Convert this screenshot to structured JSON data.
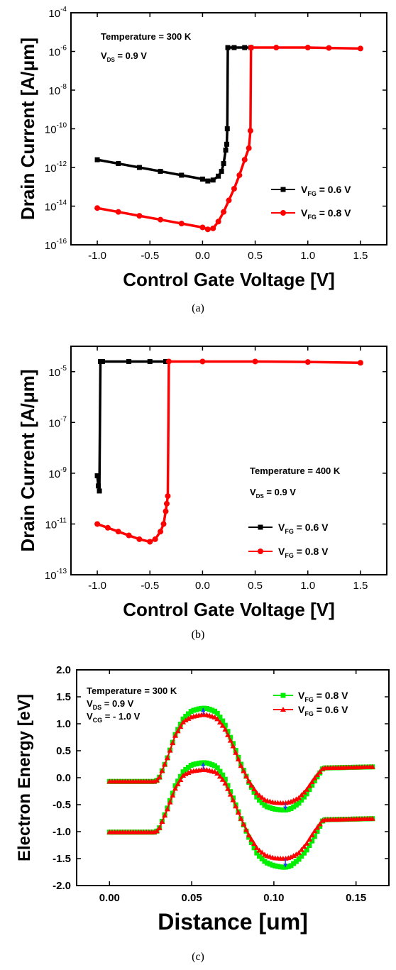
{
  "chart_data": [
    {
      "type": "line",
      "caption": "(a)",
      "xlabel": "Control Gate Voltage [V]",
      "ylabel": "Drain Current [A/μm]",
      "xlim": [
        -1.25,
        1.75
      ],
      "ylim_exp": [
        -16,
        -4
      ],
      "yscale": "log",
      "xticks": [
        "-1.0",
        "-0.5",
        "0.0",
        "0.5",
        "1.0",
        "1.5"
      ],
      "xtick_values": [
        -1.0,
        -0.5,
        0.0,
        0.5,
        1.0,
        1.5
      ],
      "ytick_exp": [
        -16,
        -14,
        -12,
        -10,
        -8,
        -6,
        -4
      ],
      "annotations": [
        {
          "main": "Temperature = 300 K",
          "sub": "",
          "tail": ""
        },
        {
          "main": "V",
          "sub": "DS",
          "tail": " = 0.9 V"
        }
      ],
      "legend": {
        "position": "right-middle"
      },
      "series": [
        {
          "sym": "V",
          "sub": "FG",
          "label_tail": " = 0.6 V",
          "color": "#000000",
          "marker": "square",
          "x": [
            -1.0,
            -0.8,
            -0.6,
            -0.4,
            -0.2,
            0.0,
            0.05,
            0.1,
            0.15,
            0.18,
            0.2,
            0.22,
            0.23,
            0.235,
            0.24,
            0.3,
            0.4,
            0.46
          ],
          "log_y": [
            -11.6,
            -11.8,
            -12.0,
            -12.2,
            -12.4,
            -12.6,
            -12.7,
            -12.65,
            -12.45,
            -12.2,
            -11.8,
            -11.1,
            -10.8,
            -10.0,
            -5.8,
            -5.8,
            -5.8,
            -5.8
          ]
        },
        {
          "sym": "V",
          "sub": "FG",
          "label_tail": " = 0.8 V",
          "color": "#ff0000",
          "marker": "circle",
          "x": [
            -1.0,
            -0.8,
            -0.6,
            -0.4,
            -0.2,
            0.0,
            0.05,
            0.1,
            0.15,
            0.2,
            0.25,
            0.3,
            0.35,
            0.4,
            0.44,
            0.455,
            0.46,
            0.7,
            1.0,
            1.2,
            1.5
          ],
          "log_y": [
            -14.1,
            -14.3,
            -14.5,
            -14.7,
            -14.9,
            -15.1,
            -15.2,
            -15.15,
            -14.8,
            -14.3,
            -13.7,
            -13.1,
            -12.4,
            -11.6,
            -11.0,
            -10.1,
            -5.8,
            -5.8,
            -5.8,
            -5.82,
            -5.85
          ]
        }
      ]
    },
    {
      "type": "line",
      "caption": "(b)",
      "xlabel": "Control Gate Voltage [V]",
      "ylabel": "Drain Current [A/μm]",
      "xlim": [
        -1.25,
        1.75
      ],
      "ylim_exp": [
        -13,
        -4
      ],
      "yscale": "log",
      "xticks": [
        "-1.0",
        "-0.5",
        "0.0",
        "0.5",
        "1.0",
        "1.5"
      ],
      "xtick_values": [
        -1.0,
        -0.5,
        0.0,
        0.5,
        1.0,
        1.5
      ],
      "ytick_exp": [
        -13,
        -11,
        -9,
        -7,
        -5
      ],
      "annotations": [
        {
          "main": "Temperature = 400 K",
          "sub": "",
          "tail": ""
        },
        {
          "main": "V",
          "sub": "DS",
          "tail": " = 0.9 V"
        }
      ],
      "legend": {
        "position": "bottom-right"
      },
      "series": [
        {
          "sym": "V",
          "sub": "FG",
          "label_tail": " = 0.6 V",
          "color": "#000000",
          "marker": "square",
          "x": [
            -1.0,
            -0.99,
            -0.98,
            -0.97,
            -0.95,
            -0.7,
            -0.5,
            -0.35
          ],
          "log_y": [
            -9.1,
            -9.5,
            -9.7,
            -4.6,
            -4.6,
            -4.6,
            -4.6,
            -4.6
          ]
        },
        {
          "sym": "V",
          "sub": "FG",
          "label_tail": " = 0.8 V",
          "color": "#ff0000",
          "marker": "circle",
          "x": [
            -1.0,
            -0.9,
            -0.8,
            -0.7,
            -0.6,
            -0.5,
            -0.45,
            -0.4,
            -0.37,
            -0.35,
            -0.34,
            -0.33,
            -0.32,
            0.0,
            0.5,
            1.0,
            1.5
          ],
          "log_y": [
            -11.0,
            -11.15,
            -11.3,
            -11.45,
            -11.6,
            -11.7,
            -11.6,
            -11.3,
            -11.0,
            -10.5,
            -10.2,
            -9.9,
            -4.6,
            -4.6,
            -4.6,
            -4.62,
            -4.65
          ]
        }
      ]
    },
    {
      "type": "line",
      "caption": "(c)",
      "xlabel": "Distance [um]",
      "ylabel": "Electron Energy [eV]",
      "xlim": [
        -0.02,
        0.17
      ],
      "ylim": [
        -2.0,
        2.0
      ],
      "yscale": "linear",
      "xticks": [
        "0.00",
        "0.05",
        "0.10",
        "0.15"
      ],
      "xtick_values": [
        0.0,
        0.05,
        0.1,
        0.15
      ],
      "yticks": [
        "-2.0",
        "-1.5",
        "-1.0",
        "-0.5",
        "0.0",
        "0.5",
        "1.0",
        "1.5",
        "2.0"
      ],
      "ytick_values": [
        -2.0,
        -1.5,
        -1.0,
        -0.5,
        0.0,
        0.5,
        1.0,
        1.5,
        2.0
      ],
      "annotations": [
        {
          "main": "Temperature = 300 K",
          "sub": "",
          "tail": ""
        },
        {
          "main": "V",
          "sub": "DS",
          "tail": " = 0.9 V"
        },
        {
          "main": "V",
          "sub": "CG",
          "tail": " = - 1.0 V"
        }
      ],
      "legend": {
        "position": "top-right"
      },
      "series": [
        {
          "sym": "V",
          "sub": "FG",
          "label_tail": " = 0.8 V",
          "color": "#00ee00",
          "marker": "square",
          "bands": [
            {
              "x": [
                0.0,
                0.028,
                0.03,
                0.035,
                0.04,
                0.045,
                0.05,
                0.055,
                0.057,
                0.06,
                0.065,
                0.07,
                0.075,
                0.08,
                0.085,
                0.09,
                0.095,
                0.1,
                0.105,
                0.107,
                0.11,
                0.115,
                0.12,
                0.125,
                0.13,
                0.16
              ],
              "y": [
                -0.07,
                -0.07,
                -0.02,
                0.35,
                0.8,
                1.1,
                1.24,
                1.28,
                1.29,
                1.28,
                1.22,
                1.0,
                0.65,
                0.25,
                -0.1,
                -0.38,
                -0.53,
                -0.58,
                -0.6,
                -0.6,
                -0.58,
                -0.48,
                -0.3,
                -0.05,
                0.18,
                0.2
              ]
            },
            {
              "x": [
                0.0,
                0.028,
                0.03,
                0.035,
                0.04,
                0.045,
                0.05,
                0.055,
                0.057,
                0.06,
                0.065,
                0.07,
                0.075,
                0.08,
                0.085,
                0.09,
                0.095,
                0.1,
                0.105,
                0.107,
                0.11,
                0.115,
                0.12,
                0.125,
                0.13,
                0.16
              ],
              "y": [
                -1.01,
                -1.01,
                -0.96,
                -0.58,
                -0.15,
                0.12,
                0.24,
                0.27,
                0.28,
                0.27,
                0.21,
                0.0,
                -0.36,
                -0.76,
                -1.12,
                -1.42,
                -1.57,
                -1.63,
                -1.66,
                -1.66,
                -1.64,
                -1.52,
                -1.34,
                -1.08,
                -0.78,
                -0.76
              ]
            }
          ]
        },
        {
          "sym": "V",
          "sub": "FG",
          "label_tail": " = 0.6 V",
          "color": "#ff0000",
          "marker": "triangle",
          "bands": [
            {
              "x": [
                0.0,
                0.028,
                0.03,
                0.035,
                0.04,
                0.045,
                0.05,
                0.055,
                0.057,
                0.06,
                0.065,
                0.07,
                0.075,
                0.08,
                0.085,
                0.09,
                0.095,
                0.1,
                0.105,
                0.107,
                0.11,
                0.115,
                0.12,
                0.125,
                0.13,
                0.16
              ],
              "y": [
                -0.07,
                -0.07,
                -0.02,
                0.35,
                0.78,
                1.04,
                1.13,
                1.16,
                1.17,
                1.16,
                1.11,
                0.92,
                0.6,
                0.22,
                -0.08,
                -0.3,
                -0.42,
                -0.46,
                -0.47,
                -0.47,
                -0.45,
                -0.38,
                -0.22,
                0.0,
                0.18,
                0.2
              ]
            },
            {
              "x": [
                0.0,
                0.028,
                0.03,
                0.035,
                0.04,
                0.045,
                0.05,
                0.055,
                0.057,
                0.06,
                0.065,
                0.07,
                0.075,
                0.08,
                0.085,
                0.09,
                0.095,
                0.1,
                0.105,
                0.107,
                0.11,
                0.115,
                0.12,
                0.125,
                0.13,
                0.16
              ],
              "y": [
                -1.01,
                -1.01,
                -0.96,
                -0.6,
                -0.2,
                0.05,
                0.12,
                0.14,
                0.15,
                0.14,
                0.1,
                -0.08,
                -0.4,
                -0.76,
                -1.08,
                -1.32,
                -1.44,
                -1.49,
                -1.5,
                -1.5,
                -1.48,
                -1.4,
                -1.22,
                -0.98,
                -0.78,
                -0.76
              ]
            }
          ]
        }
      ],
      "arrows_x": [
        0.057,
        0.107
      ]
    }
  ]
}
